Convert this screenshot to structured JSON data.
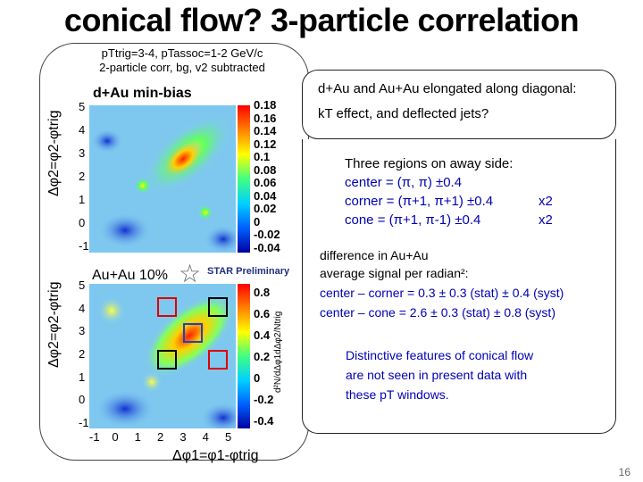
{
  "slide": {
    "title": "conical flow? 3-particle correlation",
    "subtitle_line1": "pTtrig=3-4, pTassoc=1-2 GeV/c",
    "subtitle_line2": "2-particle corr, bg, v2 subtracted",
    "page_number": "16"
  },
  "plots": {
    "top_label": "d+Au min-bias",
    "bottom_label": "Au+Au 10%",
    "preliminary": "STAR Preliminary",
    "ylabel": "Δφ2=φ2-φtrig",
    "xlabel": "Δφ1=φ1-φtrig",
    "zlabel": "d²N/dΔφ1dΔφ2/Ntrig",
    "yticks": [
      "5",
      "4",
      "3",
      "2",
      "1",
      "0",
      "-1"
    ],
    "xticks": [
      "-1",
      "0",
      "1",
      "2",
      "3",
      "4",
      "5"
    ],
    "colorbar_top": [
      "0.18",
      "0.16",
      "0.14",
      "0.12",
      "0.1",
      "0.08",
      "0.06",
      "0.04",
      "0.02",
      "0",
      "-0.02",
      "-0.04"
    ],
    "colorbar_bottom": [
      "0.8",
      "0.6",
      "0.4",
      "0.2",
      "0",
      "-0.2",
      "-0.4"
    ],
    "colors": {
      "hot": "#ff0000",
      "warm": "#ffff00",
      "cool": "#00c8ff",
      "deep": "#0000c8"
    }
  },
  "right": {
    "box1_line1": "d+Au and Au+Au elongated along diagonal:",
    "box1_line2": "kT effect, and deflected jets?",
    "regions_title": "Three regions on away side:",
    "region_center": "center =   (π, π) ±0.4",
    "region_corner": "corner =   (π+1, π+1) ±0.4",
    "region_cone": "cone    = (π+1, π-1) ±0.4",
    "mult_corner": "x2",
    "mult_cone": "x2",
    "diff_line1": "difference in Au+Au",
    "diff_line2": "average signal per radian²:",
    "diff_line3": "center – corner = 0.3 ± 0.3 (stat) ± 0.4 (syst)",
    "diff_line4": "center – cone = 2.6 ± 0.3 (stat) ± 0.8 (syst)",
    "concl_line1": "Distinctive features of conical flow",
    "concl_line2": "are not seen in present data with",
    "concl_line3": "these pT windows."
  }
}
